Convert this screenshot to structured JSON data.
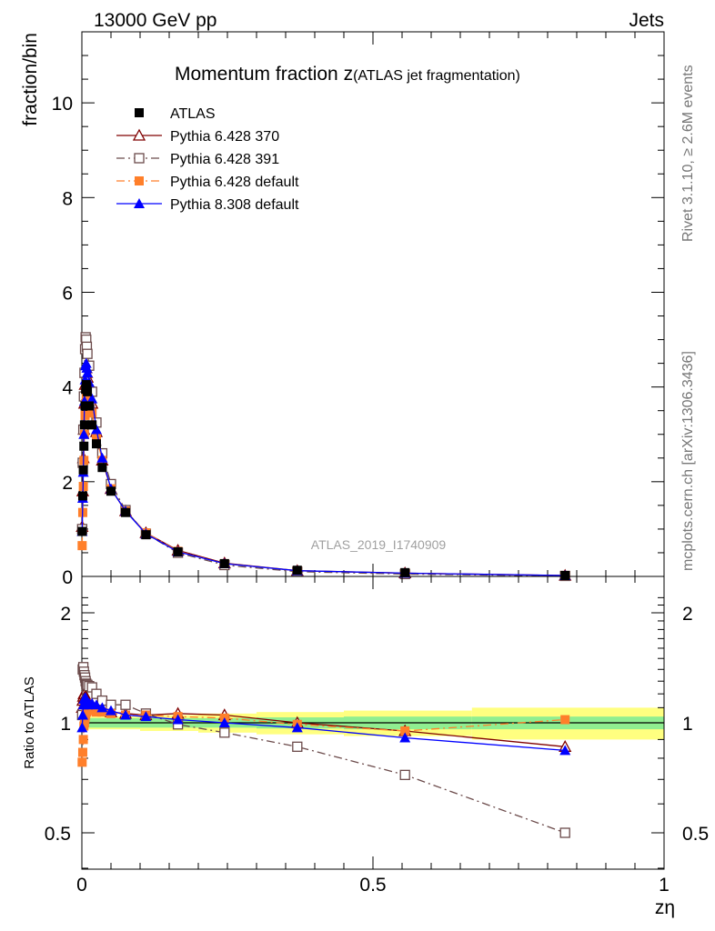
{
  "header": {
    "left": "13000 GeV pp",
    "right": "Jets"
  },
  "side_labels": {
    "rivet": "Rivet 3.1.10, ≥ 2.6M events",
    "mcplots": "mcplots.cern.ch [arXiv:1306.3436]"
  },
  "chart_data": [
    {
      "type": "line",
      "panel": "main",
      "title_main": "Momentum fraction z",
      "title_sub": "(ATLAS jet fragmentation)",
      "xlabel": "zη",
      "ylabel": "fraction/bin",
      "xlim": [
        0,
        1
      ],
      "ylim": [
        0,
        11.5
      ],
      "yticks": [
        0,
        2,
        4,
        6,
        8,
        10
      ],
      "xticks": [
        0,
        0.5,
        1
      ],
      "xtick_labels": [
        "0",
        "0.5",
        "1"
      ],
      "watermark": "ATLAS_2019_I1740909",
      "legend_position": "top-left",
      "x": [
        0.0005,
        0.0015,
        0.0025,
        0.0035,
        0.0045,
        0.0055,
        0.0065,
        0.0075,
        0.0085,
        0.0095,
        0.0125,
        0.0175,
        0.025,
        0.035,
        0.05,
        0.075,
        0.11,
        0.165,
        0.245,
        0.37,
        0.555,
        0.83
      ],
      "series": [
        {
          "name": "ATLAS",
          "color": "#000000",
          "marker": "square-filled",
          "dash": "none",
          "values": [
            0.95,
            1.7,
            2.25,
            2.75,
            3.2,
            3.6,
            3.95,
            4.05,
            4.0,
            3.9,
            3.6,
            3.2,
            2.8,
            2.3,
            1.8,
            1.35,
            0.88,
            0.52,
            0.27,
            0.13,
            0.08,
            0.02
          ]
        },
        {
          "name": "Pythia 6.428 370",
          "color": "#800000",
          "marker": "triangle-open",
          "dash": "solid",
          "values": [
            1.05,
            1.8,
            2.5,
            3.1,
            3.65,
            4.05,
            4.3,
            4.4,
            4.3,
            4.2,
            3.95,
            3.65,
            3.05,
            2.45,
            1.85,
            1.38,
            0.92,
            0.55,
            0.28,
            0.12,
            0.07,
            0.02
          ]
        },
        {
          "name": "Pythia 6.428 391",
          "color": "#6b4a4a",
          "marker": "square-open",
          "dash": "dashdot",
          "values": [
            1.0,
            2.4,
            3.1,
            3.8,
            4.3,
            4.8,
            5.05,
            5.0,
            4.85,
            4.7,
            4.45,
            3.9,
            3.25,
            2.6,
            1.95,
            1.4,
            0.9,
            0.5,
            0.24,
            0.1,
            0.05,
            0.01
          ]
        },
        {
          "name": "Pythia 6.428 default",
          "color": "#ff7f2a",
          "marker": "square-filled",
          "dash": "dashdot",
          "values": [
            0.65,
            1.35,
            1.9,
            2.45,
            3.0,
            3.4,
            3.65,
            3.8,
            3.85,
            3.8,
            3.6,
            3.45,
            2.95,
            2.45,
            1.85,
            1.38,
            0.92,
            0.53,
            0.27,
            0.12,
            0.07,
            0.02
          ]
        },
        {
          "name": "Pythia 8.308 default",
          "color": "#0000ff",
          "marker": "triangle-filled",
          "dash": "solid",
          "values": [
            0.95,
            1.65,
            2.2,
            3.0,
            3.7,
            4.15,
            4.45,
            4.5,
            4.4,
            4.3,
            4.1,
            3.75,
            3.1,
            2.5,
            1.85,
            1.38,
            0.9,
            0.52,
            0.27,
            0.12,
            0.07,
            0.02
          ]
        }
      ]
    },
    {
      "type": "line",
      "panel": "ratio",
      "ylabel": "Ratio to ATLAS",
      "xlabel": "zη",
      "xlim": [
        0,
        1
      ],
      "ylim": [
        0.35,
        2.3
      ],
      "yticks": [
        0.5,
        1,
        2
      ],
      "ytick_labels": [
        "0.5",
        "1",
        "2"
      ],
      "x": [
        0.0005,
        0.0015,
        0.0025,
        0.0035,
        0.0045,
        0.0055,
        0.0065,
        0.0075,
        0.0085,
        0.0095,
        0.0125,
        0.0175,
        0.025,
        0.035,
        0.05,
        0.075,
        0.11,
        0.165,
        0.245,
        0.37,
        0.555,
        0.83
      ],
      "uncertainty_band": {
        "inner_color": "#90ee90",
        "outer_color": "#ffff80",
        "x_edges": [
          0,
          0.1,
          0.2,
          0.3,
          0.45,
          0.67,
          1.0
        ],
        "inner_half_width": [
          0.03,
          0.03,
          0.03,
          0.035,
          0.04,
          0.04
        ],
        "outer_half_width": [
          0.04,
          0.05,
          0.06,
          0.07,
          0.08,
          0.1
        ]
      },
      "series": [
        {
          "name": "Pythia 6.428 370",
          "color": "#800000",
          "marker": "triangle-open",
          "dash": "solid",
          "values": [
            1.1,
            1.15,
            1.18,
            1.2,
            1.2,
            1.18,
            1.17,
            1.16,
            1.15,
            1.14,
            1.13,
            1.12,
            1.1,
            1.08,
            1.07,
            1.06,
            1.05,
            1.06,
            1.05,
            1.0,
            0.95,
            0.86
          ]
        },
        {
          "name": "Pythia 6.428 391",
          "color": "#6b4a4a",
          "marker": "square-open",
          "dash": "dashdot",
          "values": [
            1.05,
            1.4,
            1.42,
            1.38,
            1.35,
            1.33,
            1.3,
            1.28,
            1.27,
            1.27,
            1.26,
            1.25,
            1.2,
            1.15,
            1.12,
            1.12,
            1.06,
            0.99,
            0.94,
            0.86,
            0.72,
            0.5
          ]
        },
        {
          "name": "Pythia 6.428 default",
          "color": "#ff7f2a",
          "marker": "square-filled",
          "dash": "dashdot",
          "values": [
            0.78,
            0.83,
            0.9,
            0.98,
            1.0,
            1.03,
            1.05,
            1.07,
            1.07,
            1.08,
            1.08,
            1.08,
            1.07,
            1.07,
            1.06,
            1.05,
            1.05,
            1.04,
            1.03,
            0.99,
            0.95,
            1.02
          ]
        },
        {
          "name": "Pythia 8.308 default",
          "color": "#0000ff",
          "marker": "triangle-filled",
          "dash": "solid",
          "values": [
            0.97,
            1.05,
            1.12,
            1.16,
            1.16,
            1.17,
            1.17,
            1.16,
            1.14,
            1.12,
            1.13,
            1.13,
            1.12,
            1.1,
            1.08,
            1.05,
            1.04,
            1.02,
            1.0,
            0.97,
            0.91,
            0.84
          ]
        }
      ]
    }
  ]
}
